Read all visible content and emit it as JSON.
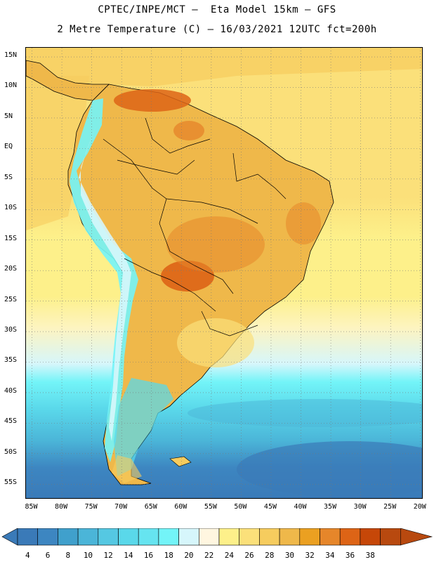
{
  "header": {
    "title_line1": "CPTEC/INPE/MCT –  Eta Model 15km – GFS",
    "title_line2": "2 Metre Temperature (C) – 16/03/2021 12UTC fct=200h"
  },
  "map": {
    "lat_labels": [
      "15N",
      "10N",
      "5N",
      "EQ",
      "5S",
      "10S",
      "15S",
      "20S",
      "25S",
      "30S",
      "35S",
      "40S",
      "45S",
      "50S",
      "55S"
    ],
    "lon_labels": [
      "85W",
      "80W",
      "75W",
      "70W",
      "65W",
      "60W",
      "55W",
      "50W",
      "45W",
      "40W",
      "35W",
      "30W",
      "25W",
      "20W"
    ],
    "lat_range_deg": [
      -57.5,
      16.5
    ],
    "lon_range_deg": [
      -86,
      -19.5
    ]
  },
  "colorbar": {
    "labels": [
      "4",
      "6",
      "8",
      "10",
      "12",
      "14",
      "16",
      "18",
      "20",
      "22",
      "24",
      "26",
      "28",
      "30",
      "32",
      "34",
      "36",
      "38"
    ],
    "colors": [
      "#3a7ab8",
      "#3d86c1",
      "#40a0cc",
      "#4bb5d8",
      "#55c8e2",
      "#5ad8ea",
      "#66e4f0",
      "#73f4f8",
      "#d6f6fb",
      "#fff6e0",
      "#fdf08a",
      "#fbe07a",
      "#f6cc5e",
      "#efb84a",
      "#eba021",
      "#e6862a",
      "#dd6416",
      "#c64708",
      "#b8490f"
    ],
    "under_color": "#3a7ab8",
    "over_color": "#b8490f"
  }
}
